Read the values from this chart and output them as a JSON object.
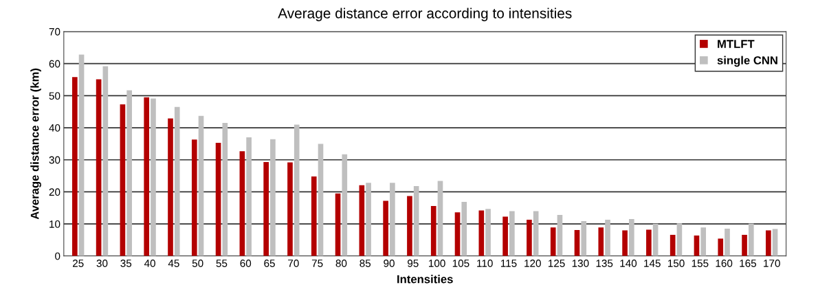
{
  "chart_data": {
    "type": "bar",
    "title": "Average distance error according to intensities",
    "xlabel": "Intensities",
    "ylabel": "Average distance error (km)",
    "categories": [
      "25",
      "30",
      "35",
      "40",
      "45",
      "50",
      "55",
      "60",
      "65",
      "70",
      "75",
      "80",
      "85",
      "90",
      "95",
      "100",
      "105",
      "110",
      "115",
      "120",
      "125",
      "130",
      "135",
      "140",
      "145",
      "150",
      "155",
      "160",
      "165",
      "170"
    ],
    "series": [
      {
        "name": "MTLFT",
        "color": "#b30000",
        "values": [
          55.8,
          55.1,
          47.3,
          49.5,
          42.9,
          36.3,
          35.3,
          32.7,
          29.3,
          29.2,
          24.8,
          19.5,
          22.1,
          17.2,
          18.7,
          15.6,
          13.6,
          14.2,
          12.3,
          11.3,
          8.9,
          8.1,
          8.9,
          8.0,
          8.2,
          6.6,
          6.4,
          5.4,
          6.6,
          8.0
        ]
      },
      {
        "name": "single CNN",
        "color": "#bfbfbf",
        "values": [
          62.8,
          59.2,
          51.7,
          49.1,
          46.5,
          43.7,
          41.5,
          37.0,
          36.4,
          41.0,
          35.0,
          31.7,
          22.8,
          22.8,
          21.8,
          23.4,
          16.9,
          14.7,
          14.0,
          14.0,
          12.8,
          10.9,
          11.3,
          11.5,
          10.0,
          10.2,
          8.9,
          8.5,
          10.1,
          8.4
        ]
      }
    ],
    "ylim": [
      0,
      70
    ],
    "yticks": [
      0,
      10,
      20,
      30,
      40,
      50,
      60,
      70
    ],
    "grid": "y",
    "legend": "top right"
  }
}
